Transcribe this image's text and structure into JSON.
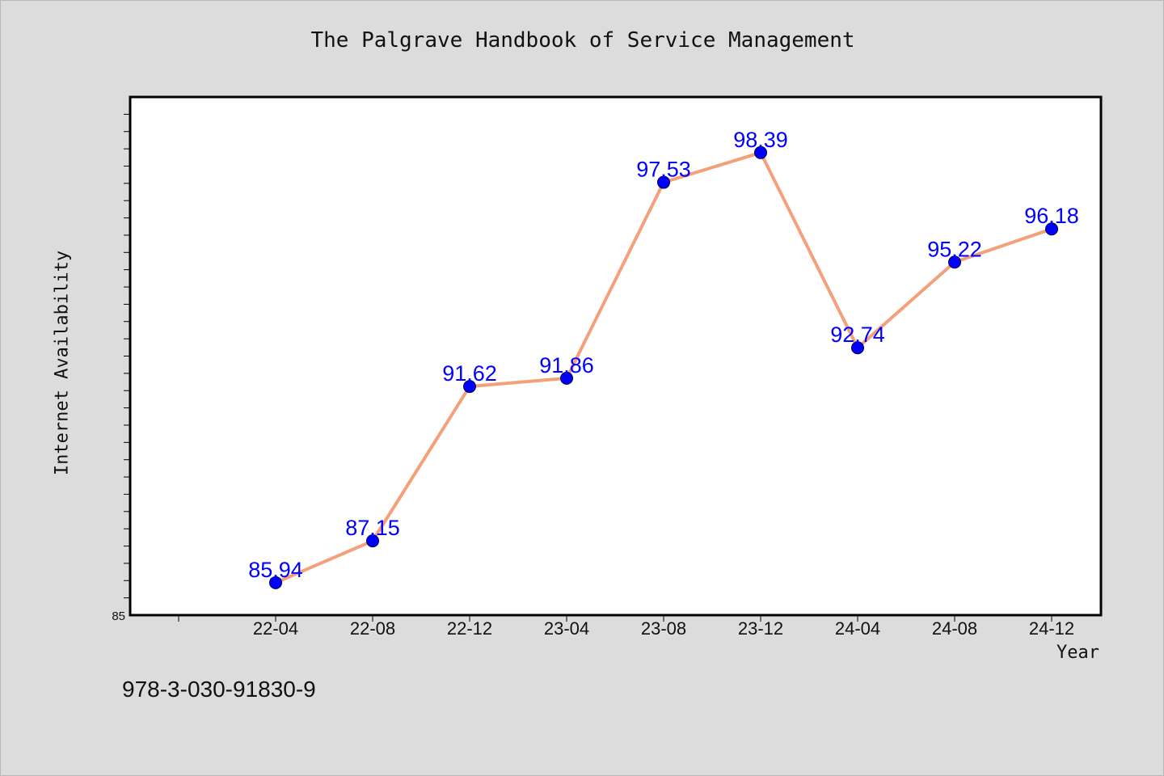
{
  "chart_data": {
    "type": "line",
    "title": "The Palgrave Handbook of Service Management",
    "xlabel": "Year",
    "ylabel": "Internet Availability",
    "categories": [
      "22-04",
      "22-08",
      "22-12",
      "23-04",
      "23-08",
      "23-12",
      "24-04",
      "24-08",
      "24-12"
    ],
    "series": [
      {
        "values": [
          85.94,
          87.15,
          91.62,
          91.86,
          97.53,
          98.39,
          92.74,
          95.22,
          96.18
        ]
      }
    ],
    "y_tick_labels": [
      "85"
    ],
    "ylim": [
      85,
      100
    ],
    "grid": false,
    "data_labels": true,
    "colors": {
      "line": "#f4a07a",
      "marker": "#0000ff",
      "data_label": "#0000ff"
    }
  },
  "footer": {
    "isbn": "978-3-030-91830-9"
  }
}
